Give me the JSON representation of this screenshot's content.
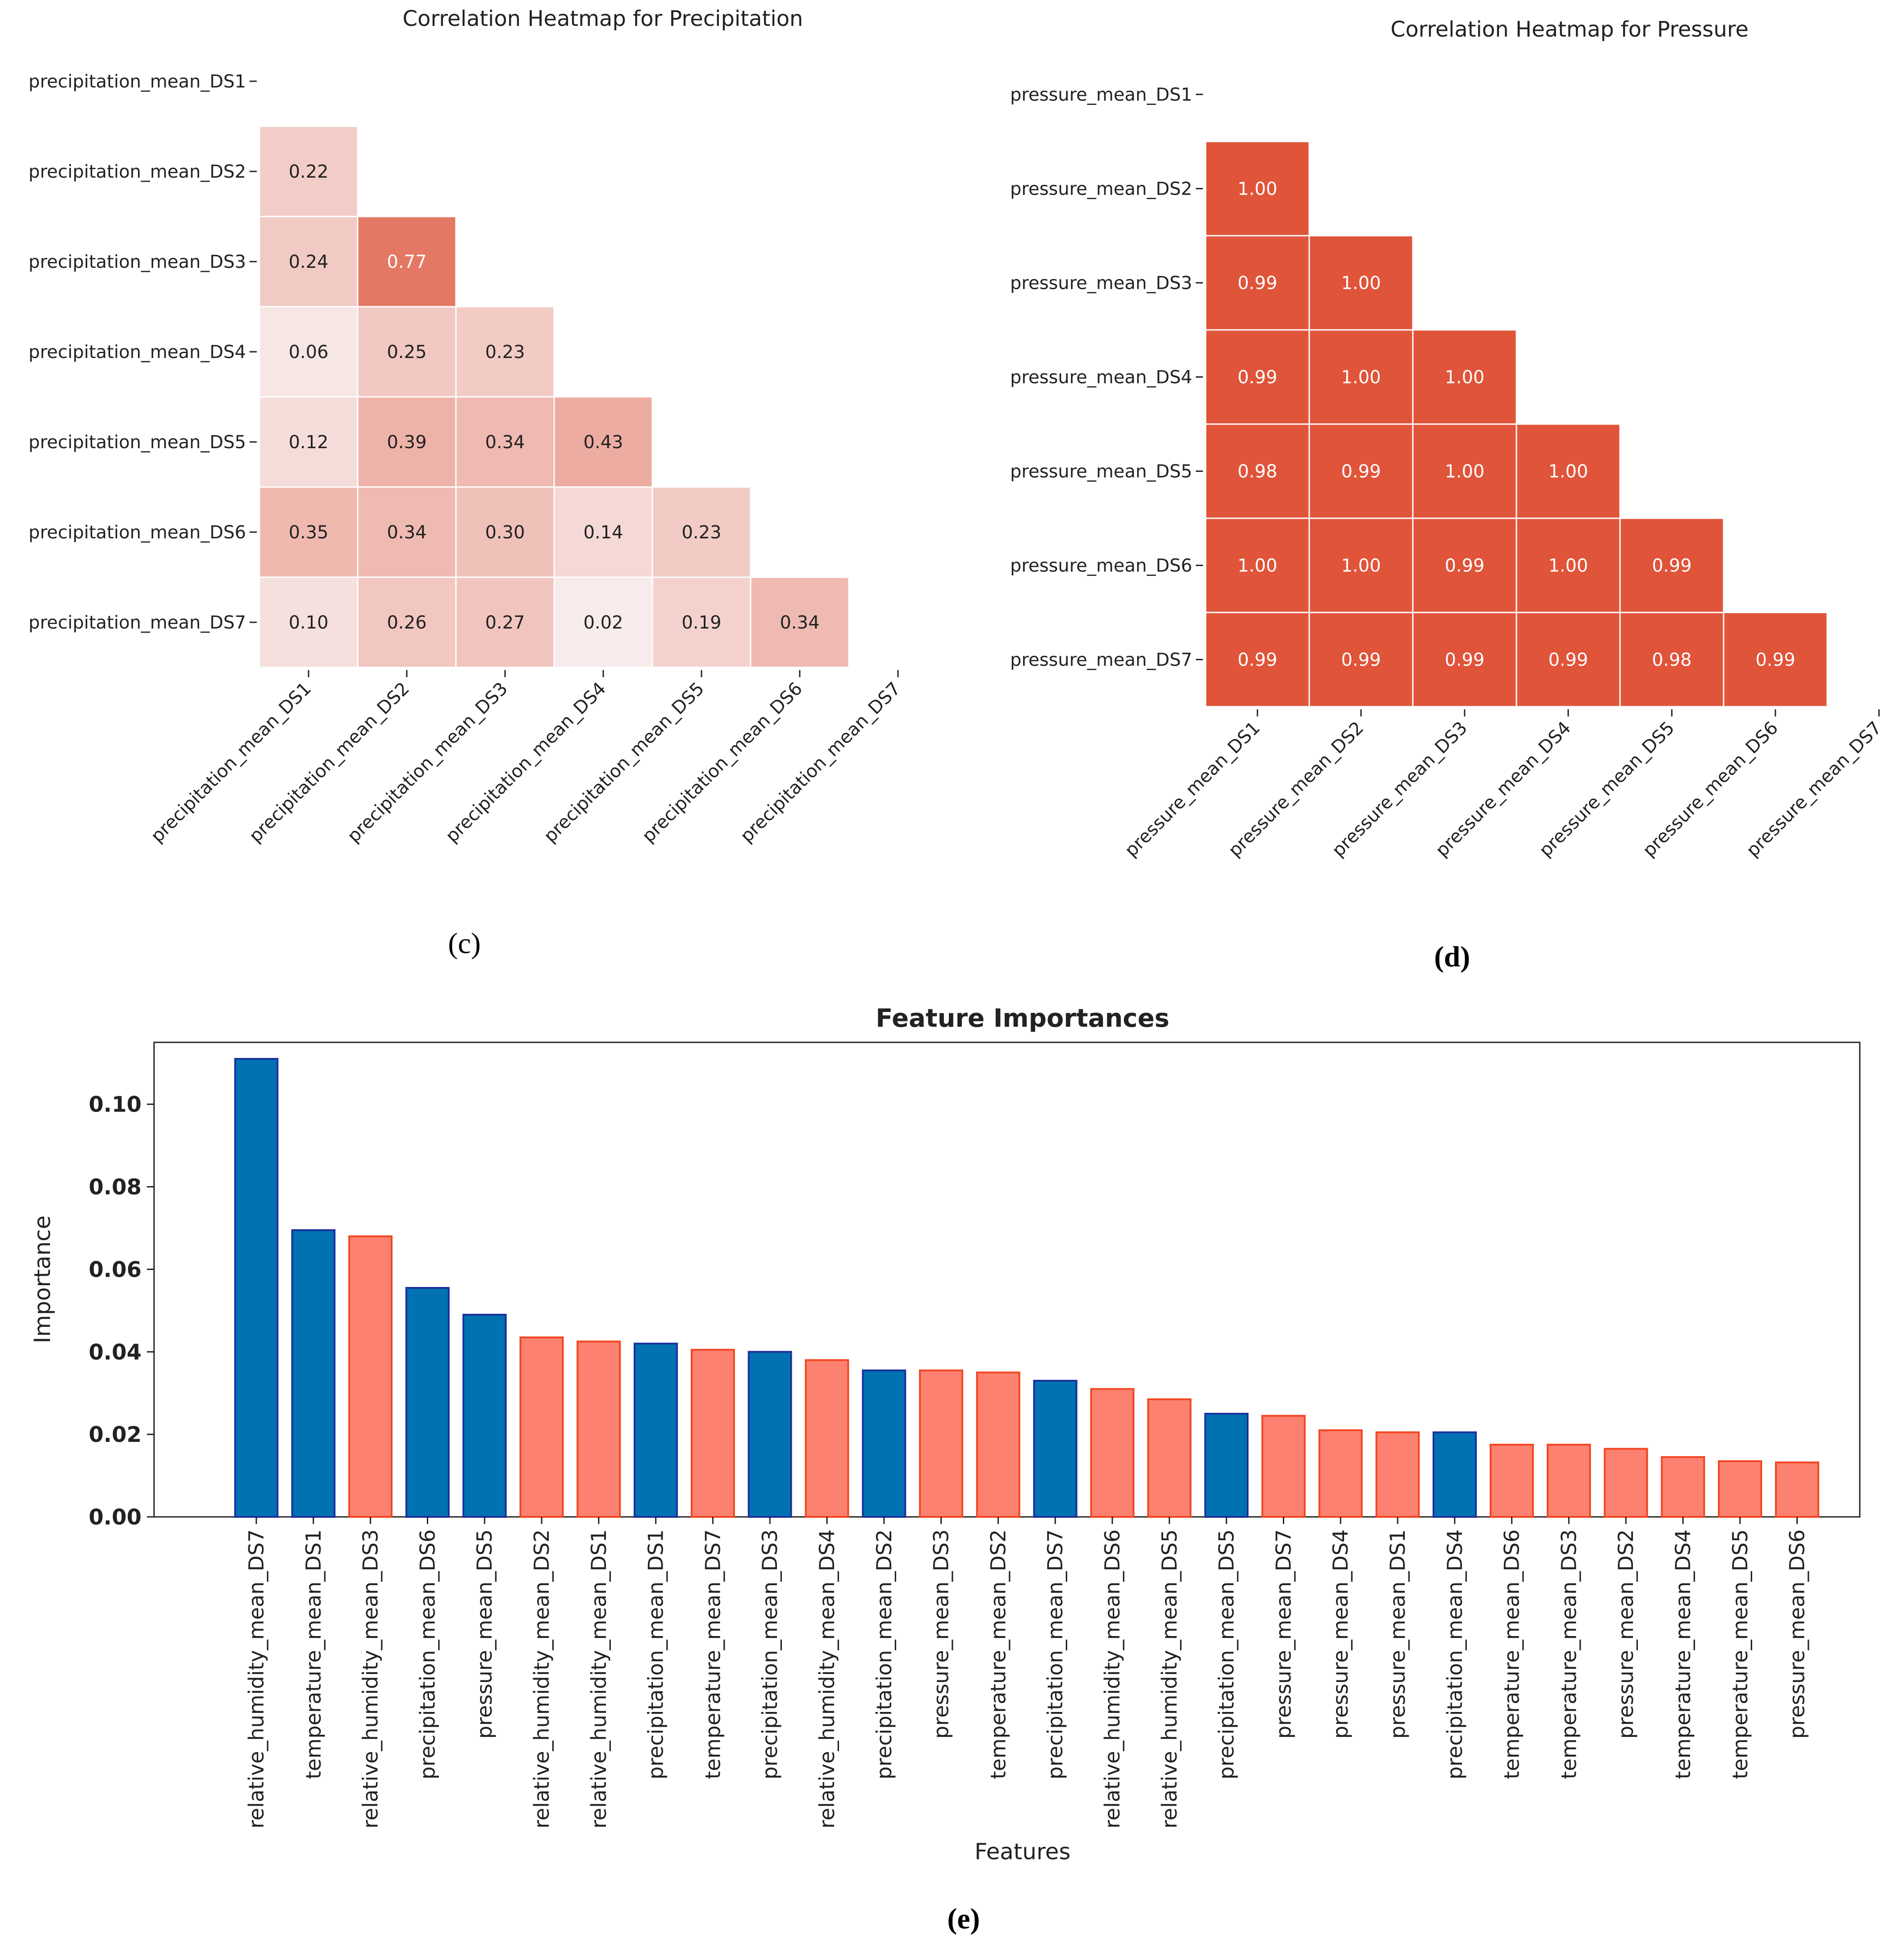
{
  "panel_labels": {
    "c": "(c)",
    "d": "(d)",
    "e": "(e)"
  },
  "chart_data": [
    {
      "type": "heatmap",
      "title": "Correlation Heatmap for Precipitation",
      "labels": [
        "precipitation_mean_DS1",
        "precipitation_mean_DS2",
        "precipitation_mean_DS3",
        "precipitation_mean_DS4",
        "precipitation_mean_DS5",
        "precipitation_mean_DS6",
        "precipitation_mean_DS7"
      ],
      "lower_triangle": [
        [],
        [
          0.22
        ],
        [
          0.24,
          0.77
        ],
        [
          0.06,
          0.25,
          0.23
        ],
        [
          0.12,
          0.39,
          0.34,
          0.43
        ],
        [
          0.35,
          0.34,
          0.3,
          0.14,
          0.23
        ],
        [
          0.1,
          0.26,
          0.27,
          0.02,
          0.19,
          0.34
        ]
      ],
      "value_labels": [
        [],
        [
          "0.22"
        ],
        [
          "0.24",
          "0.77"
        ],
        [
          "0.06",
          "0.25",
          "0.23"
        ],
        [
          "0.12",
          "0.39",
          "0.34",
          "0.43"
        ],
        [
          "0.35",
          "0.34",
          "0.30",
          "0.14",
          "0.23"
        ],
        [
          "0.10",
          "0.26",
          "0.27",
          "0.02",
          "0.19",
          "0.34"
        ]
      ],
      "mask": "upper-triangle-and-diagonal",
      "colors": {
        "low": "#f7efef",
        "high": "#e0543a"
      }
    },
    {
      "type": "heatmap",
      "title": "Correlation Heatmap for Pressure",
      "labels": [
        "pressure_mean_DS1",
        "pressure_mean_DS2",
        "pressure_mean_DS3",
        "pressure_mean_DS4",
        "pressure_mean_DS5",
        "pressure_mean_DS6",
        "pressure_mean_DS7"
      ],
      "lower_triangle": [
        [],
        [
          1.0
        ],
        [
          0.99,
          1.0
        ],
        [
          0.99,
          1.0,
          1.0
        ],
        [
          0.98,
          0.99,
          1.0,
          1.0
        ],
        [
          1.0,
          1.0,
          0.99,
          1.0,
          0.99
        ],
        [
          0.99,
          0.99,
          0.99,
          0.99,
          0.98,
          0.99
        ]
      ],
      "value_labels": [
        [],
        [
          "1.00"
        ],
        [
          "0.99",
          "1.00"
        ],
        [
          "0.99",
          "1.00",
          "1.00"
        ],
        [
          "0.98",
          "0.99",
          "1.00",
          "1.00"
        ],
        [
          "1.00",
          "1.00",
          "0.99",
          "1.00",
          "0.99"
        ],
        [
          "0.99",
          "0.99",
          "0.99",
          "0.99",
          "0.98",
          "0.99"
        ]
      ],
      "mask": "upper-triangle-and-diagonal",
      "colors": {
        "cell": "#e0543a"
      }
    },
    {
      "type": "bar",
      "title": "Feature Importances",
      "xlabel": "Features",
      "ylabel": "Importance",
      "ylim": [
        0,
        0.115
      ],
      "yticks": [
        "0.00",
        "0.02",
        "0.04",
        "0.06",
        "0.08",
        "0.10"
      ],
      "categories": [
        "relative_humidity_mean_DS7",
        "temperature_mean_DS1",
        "relative_humidity_mean_DS3",
        "precipitation_mean_DS6",
        "pressure_mean_DS5",
        "relative_humidity_mean_DS2",
        "relative_humidity_mean_DS1",
        "precipitation_mean_DS1",
        "temperature_mean_DS7",
        "precipitation_mean_DS3",
        "relative_humidity_mean_DS4",
        "precipitation_mean_DS2",
        "pressure_mean_DS3",
        "temperature_mean_DS2",
        "precipitation_mean_DS7",
        "relative_humidity_mean_DS6",
        "relative_humidity_mean_DS5",
        "precipitation_mean_DS5",
        "pressure_mean_DS7",
        "pressure_mean_DS4",
        "pressure_mean_DS1",
        "precipitation_mean_DS4",
        "temperature_mean_DS6",
        "temperature_mean_DS3",
        "pressure_mean_DS2",
        "temperature_mean_DS4",
        "temperature_mean_DS5",
        "pressure_mean_DS6"
      ],
      "values": [
        0.111,
        0.0695,
        0.068,
        0.0555,
        0.049,
        0.0435,
        0.0425,
        0.042,
        0.0405,
        0.04,
        0.038,
        0.0355,
        0.0355,
        0.035,
        0.033,
        0.031,
        0.0285,
        0.025,
        0.0245,
        0.021,
        0.0205,
        0.0205,
        0.0175,
        0.0175,
        0.0165,
        0.0145,
        0.0135,
        0.0132
      ],
      "bar_color_group": [
        "blue",
        "blue",
        "red",
        "blue",
        "blue",
        "red",
        "red",
        "blue",
        "red",
        "blue",
        "red",
        "blue",
        "red",
        "red",
        "blue",
        "red",
        "red",
        "blue",
        "red",
        "red",
        "red",
        "blue",
        "red",
        "red",
        "red",
        "red",
        "red",
        "red"
      ],
      "colors": {
        "blue": "#0072b2",
        "blue_edge": "#1b2f9c",
        "red": "#fc8170",
        "red_edge": "#f2451f"
      }
    }
  ]
}
